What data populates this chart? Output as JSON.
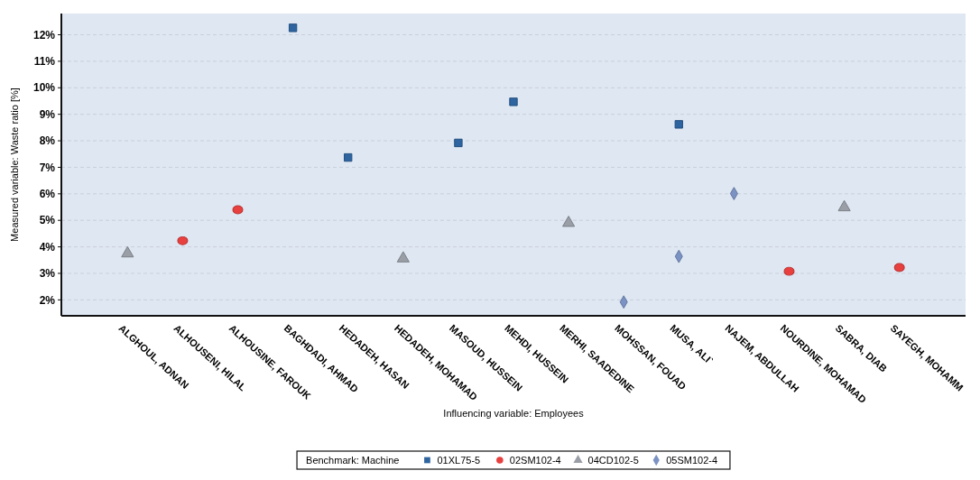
{
  "chart_data": {
    "type": "scatter",
    "xlabel": "Influencing variable: Employees",
    "ylabel": "Measured variable: Waste ratio [%]",
    "legend_title": "Benchmark: Machine",
    "legend": "bottom",
    "grid": "y",
    "line_style": "dashed",
    "categories": [
      "ALGHOUL, ADNAN",
      "ALHOUSENI, HILAL",
      "ALHOUSINE, FAROUK",
      "BAGHDADI, AHMAD",
      "HEDADEH, HASAN",
      "HEDADEH, MOHAMAD",
      "MASOUD, HUSSEIN",
      "MEHDI, HUSSEIN",
      "MERHI, SAADEDINE",
      "MOHSSAN, FOUAD",
      "MUSA, ALI`",
      "NAJEM, ABDULLAH",
      "NOURDINE, MOHAMAD",
      "SABRA, DIAB",
      "SAYEGH, MOHAMM"
    ],
    "ylim": [
      1.4,
      12.8
    ],
    "yticks": [
      {
        "value": 2,
        "label": "2%"
      },
      {
        "value": 3,
        "label": "3%"
      },
      {
        "value": 4,
        "label": "4%"
      },
      {
        "value": 5,
        "label": "5%"
      },
      {
        "value": 6,
        "label": "6%"
      },
      {
        "value": 7,
        "label": "7%"
      },
      {
        "value": 8,
        "label": "8%"
      },
      {
        "value": 9,
        "label": "9%"
      },
      {
        "value": 10,
        "label": "10%"
      },
      {
        "value": 11,
        "label": "11%"
      },
      {
        "value": 12,
        "label": "12%"
      }
    ],
    "series": [
      {
        "name": "01XL75-5",
        "color": "#2e64a0",
        "marker": "square",
        "values": [
          null,
          null,
          null,
          12.26,
          7.37,
          null,
          7.92,
          9.47,
          null,
          null,
          8.62,
          null,
          null,
          null,
          null
        ]
      },
      {
        "name": "02SM102-4",
        "color": "#e8403f",
        "marker": "circle",
        "values": [
          null,
          4.23,
          5.4,
          null,
          null,
          null,
          null,
          null,
          null,
          null,
          null,
          null,
          3.08,
          null,
          3.22
        ]
      },
      {
        "name": "04CD102-5",
        "color": "#9a9ea6",
        "marker": "triangle",
        "values": [
          3.75,
          null,
          null,
          null,
          null,
          3.56,
          null,
          null,
          4.9,
          null,
          null,
          null,
          null,
          5.49,
          null
        ]
      },
      {
        "name": "05SM102-4",
        "color": "#7b93c4",
        "marker": "diamond",
        "values": [
          null,
          null,
          null,
          null,
          null,
          null,
          null,
          null,
          null,
          1.92,
          3.64,
          6.01,
          null,
          null,
          null
        ]
      }
    ]
  }
}
